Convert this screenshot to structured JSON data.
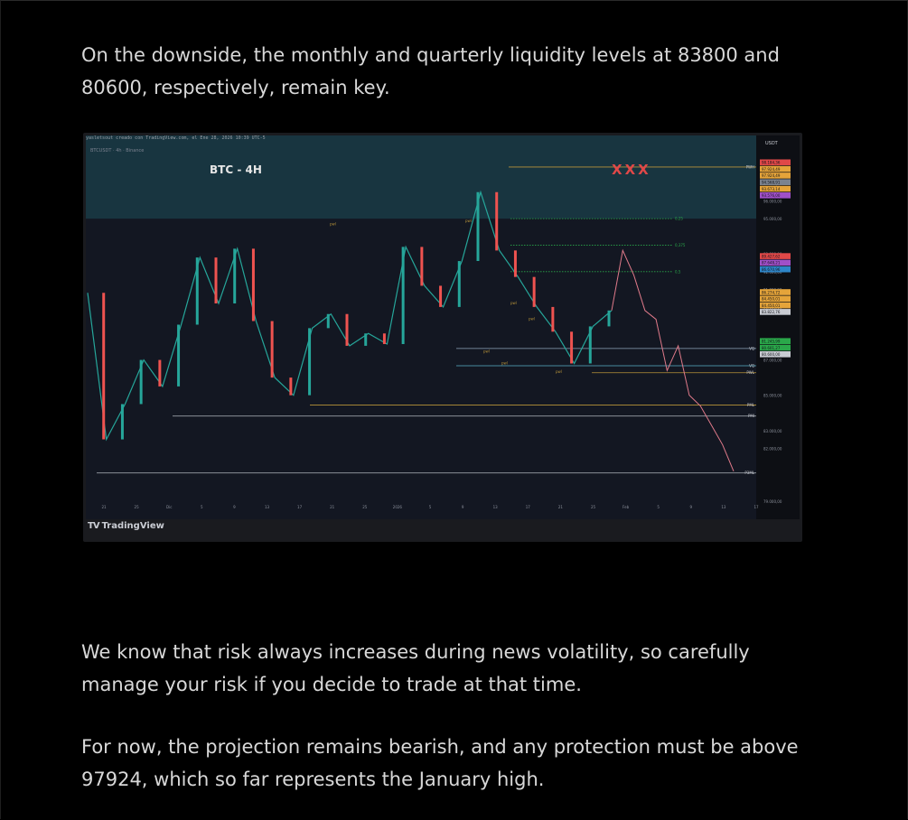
{
  "paragraphs": {
    "p1": "On the downside, the monthly and quarterly liquidity levels at 83800 and 80600, respectively, remain key.",
    "p2": "We know that risk always increases during news volatility, so carefully manage your risk if you decide to trade at that time.",
    "p3": "For now, the projection remains bearish, and any protection must be above 97924, which so far represents the January high."
  },
  "figure": {
    "meta_line": "yasletsout creado con TradingView.com, el Ene 28, 2026 10:39 UTC-5",
    "symbol_line": "BTCUSDT · 4h · Binance",
    "logo_mark": "TV",
    "logo_text": "TradingView"
  },
  "chart_data": {
    "type": "line",
    "title": "BTC - 4H",
    "currency_label": "USDT",
    "marker": "XXX",
    "x_tick_labels": [
      "21",
      "25",
      "Dic",
      "5",
      "9",
      "13",
      "17",
      "21",
      "25",
      "2026",
      "5",
      "9",
      "13",
      "17",
      "21",
      "25",
      "Feb",
      "5",
      "9",
      "13",
      "17"
    ],
    "y_ticks": [
      97000,
      96000,
      95000,
      93000,
      92000,
      91000,
      90000,
      88000,
      87000,
      85000,
      83000,
      82000,
      79000
    ],
    "y_tick_labels": [
      "97.000,00",
      "96.000,00",
      "95.000,00",
      "93.000,00",
      "92.000,00",
      "91.000,00",
      "90.000,00",
      "88.000,00",
      "87.000,00",
      "85.000,00",
      "83.000,00",
      "82.000,00",
      "79.000,00"
    ],
    "ylim": [
      79000,
      99200
    ],
    "level_lines": [
      {
        "name": "PWH",
        "value": 97924,
        "color": "#b8943a"
      },
      {
        "name": "PWL",
        "value": 86275,
        "color": "#b8943a"
      },
      {
        "name": "VQ",
        "value": 87648,
        "color": "#8ea3b8"
      },
      {
        "name": "VQ",
        "value": 86670,
        "color": "#5ab2c8"
      },
      {
        "name": "PML",
        "value": 84450,
        "color": "#b8943a"
      },
      {
        "name": "PMI",
        "value": 83822,
        "color": "#9aa0a8"
      },
      {
        "name": "P3ML",
        "value": 80601,
        "color": "#9aa0a8"
      }
    ],
    "fib_labels": [
      "0,25",
      "0,375",
      "0,5"
    ],
    "inline_labels": [
      "pwl",
      "pwl",
      "pwl",
      "pwl",
      "pwl",
      "pwl",
      "pwl"
    ],
    "price_badges": [
      {
        "text": "98.184,36",
        "color": "#e04848"
      },
      {
        "text": "97.924,49",
        "color": "#e5a43a"
      },
      {
        "text": "97.924,49",
        "color": "#e5a43a"
      },
      {
        "text": "94.568,91",
        "color": "#7b838f"
      },
      {
        "text": "93.673,14",
        "color": "#e5a43a"
      },
      {
        "text": "93.576,00",
        "color": "#a050c8"
      },
      {
        "text": "89.427,62",
        "color": "#e04848"
      },
      {
        "text": "87.648,21",
        "color": "#a050c8"
      },
      {
        "text": "86.670,96",
        "color": "#2e86c8"
      },
      {
        "text": "86.274,72",
        "color": "#e5a43a"
      },
      {
        "text": "84.450,01",
        "color": "#e5a43a"
      },
      {
        "text": "84.450,01",
        "color": "#e5a43a"
      },
      {
        "text": "83.822,76",
        "color": "#c9ccd3"
      },
      {
        "text": "81.245,99",
        "color": "#2aa84a"
      },
      {
        "text": "80.601,27",
        "color": "#2aa84a"
      },
      {
        "text": "80.600,00",
        "color": "#c9ccd3"
      }
    ],
    "series": [
      {
        "values": [
          90800,
          82500,
          84500,
          87000,
          85500,
          89000,
          92800,
          90200,
          93300,
          89200,
          86000,
          85000,
          88800,
          89600,
          87800,
          88500,
          87900,
          93400,
          91200,
          90000,
          92600,
          96500,
          93200,
          91700,
          90000,
          88600,
          86800,
          88900,
          89800
        ]
      },
      {
        "values": [
          89800,
          93200,
          91800,
          89800,
          89300,
          86400,
          87800,
          85000,
          84400,
          83300,
          82200,
          80700
        ]
      }
    ],
    "colors": {
      "candles_up": "#26a69a",
      "candles_down": "#ef5350",
      "projection": "#e07a8a",
      "marker": "#e04848"
    }
  }
}
